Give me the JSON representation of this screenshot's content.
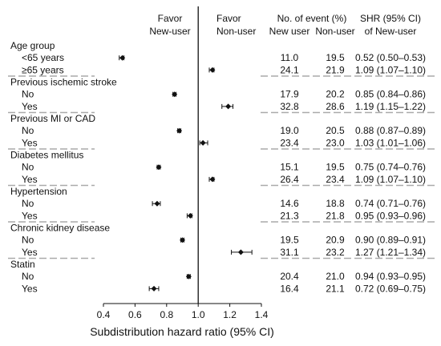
{
  "chart_data": {
    "type": "forest",
    "xlabel": "Subdistribution hazard ratio (95% CI)",
    "xlim": [
      0.4,
      1.4
    ],
    "xticks": [
      0.4,
      0.6,
      0.8,
      1.0,
      1.2,
      1.4
    ],
    "tick_labels": [
      "0.4",
      "0.6",
      "0.8",
      "1.0",
      "1.2",
      "1.4"
    ],
    "reference_value": 1.0,
    "favor_left": [
      "Favor",
      "New-user"
    ],
    "favor_right": [
      "Favor",
      "Non-user"
    ],
    "header": {
      "events": "No. of event (%)",
      "new_user": "New user",
      "non_user": "Non-user",
      "shr": "SHR (95% CI)",
      "shr_sub": "of New-user"
    },
    "groups": [
      {
        "name": "Age group",
        "rows": [
          {
            "label": "<65 years",
            "new": "11.0",
            "non": "19.5",
            "shr_text": "0.52 (0.50–0.53)",
            "est": 0.52,
            "lo": 0.5,
            "hi": 0.53
          },
          {
            "label": "≥65 years",
            "new": "24.1",
            "non": "21.9",
            "shr_text": "1.09 (1.07–1.10)",
            "est": 1.09,
            "lo": 1.07,
            "hi": 1.1
          }
        ]
      },
      {
        "name": "Previous ischemic stroke",
        "rows": [
          {
            "label": "No",
            "new": "17.9",
            "non": "20.2",
            "shr_text": "0.85 (0.84–0.86)",
            "est": 0.85,
            "lo": 0.84,
            "hi": 0.86
          },
          {
            "label": "Yes",
            "new": "32.8",
            "non": "28.6",
            "shr_text": "1.19 (1.15–1.22)",
            "est": 1.19,
            "lo": 1.15,
            "hi": 1.22
          }
        ]
      },
      {
        "name": "Previous MI or CAD",
        "rows": [
          {
            "label": "No",
            "new": "19.0",
            "non": "20.5",
            "shr_text": "0.88 (0.87–0.89)",
            "est": 0.88,
            "lo": 0.87,
            "hi": 0.89
          },
          {
            "label": "Yes",
            "new": "23.4",
            "non": "23.0",
            "shr_text": "1.03 (1.01–1.06)",
            "est": 1.03,
            "lo": 1.01,
            "hi": 1.06
          }
        ]
      },
      {
        "name": "Diabetes mellitus",
        "rows": [
          {
            "label": "No",
            "new": "15.1",
            "non": "19.5",
            "shr_text": "0.75 (0.74–0.76)",
            "est": 0.75,
            "lo": 0.74,
            "hi": 0.76
          },
          {
            "label": "Yes",
            "new": "26.4",
            "non": "23.4",
            "shr_text": "1.09 (1.07–1.10)",
            "est": 1.09,
            "lo": 1.07,
            "hi": 1.1
          }
        ]
      },
      {
        "name": "Hypertension",
        "rows": [
          {
            "label": "No",
            "new": "14.6",
            "non": "18.8",
            "shr_text": "0.74 (0.71–0.76)",
            "est": 0.74,
            "lo": 0.71,
            "hi": 0.76
          },
          {
            "label": "Yes",
            "new": "21.3",
            "non": "21.8",
            "shr_text": "0.95 (0.93–0.96)",
            "est": 0.95,
            "lo": 0.93,
            "hi": 0.96
          }
        ]
      },
      {
        "name": "Chronic kidney disease",
        "rows": [
          {
            "label": "No",
            "new": "19.5",
            "non": "20.9",
            "shr_text": "0.90 (0.89–0.91)",
            "est": 0.9,
            "lo": 0.89,
            "hi": 0.91
          },
          {
            "label": "Yes",
            "new": "31.1",
            "non": "23.2",
            "shr_text": "1.27 (1.21–1.34)",
            "est": 1.27,
            "lo": 1.21,
            "hi": 1.34
          }
        ]
      },
      {
        "name": "Statin",
        "rows": [
          {
            "label": "No",
            "new": "20.4",
            "non": "21.0",
            "shr_text": "0.94 (0.93–0.95)",
            "est": 0.94,
            "lo": 0.93,
            "hi": 0.95
          },
          {
            "label": "Yes",
            "new": "16.4",
            "non": "21.1",
            "shr_text": "0.72 (0.69–0.75)",
            "est": 0.72,
            "lo": 0.69,
            "hi": 0.75
          }
        ]
      }
    ]
  }
}
